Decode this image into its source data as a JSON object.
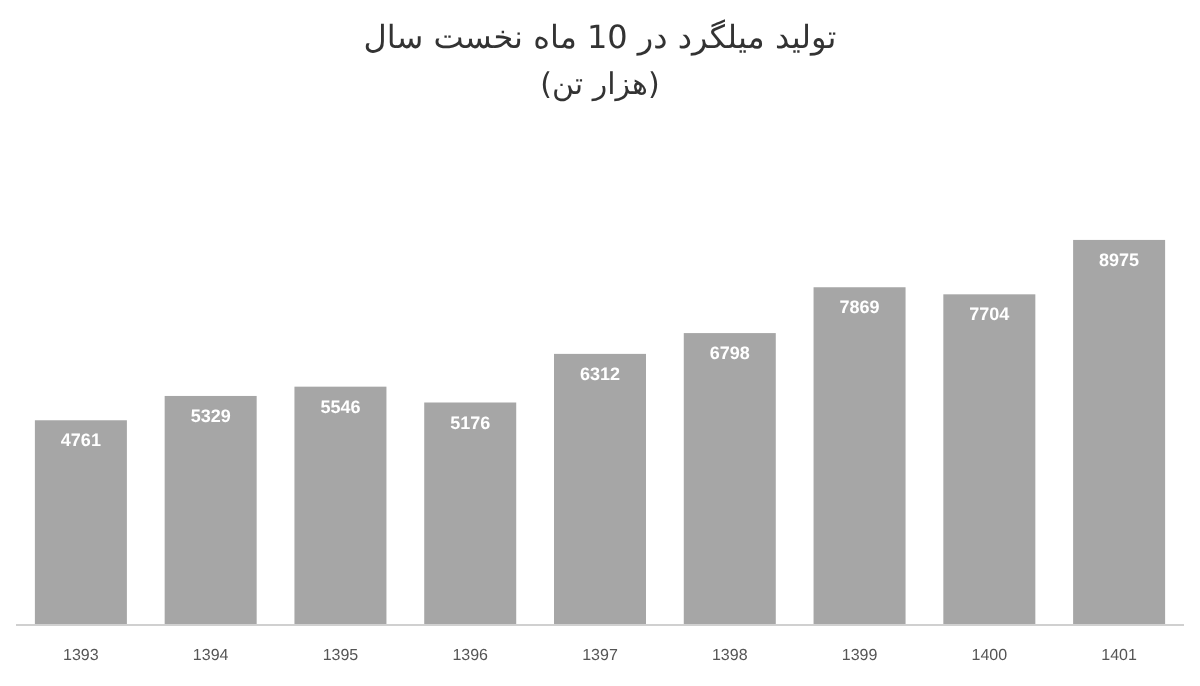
{
  "chart_data": {
    "type": "bar",
    "title": "تولید میلگرد در 10 ماه نخست سال",
    "subtitle": "(هزار تن)",
    "categories": [
      "1393",
      "1394",
      "1395",
      "1396",
      "1397",
      "1398",
      "1399",
      "1400",
      "1401"
    ],
    "values": [
      4761,
      5329,
      5546,
      5176,
      6312,
      6798,
      7869,
      7704,
      8975
    ],
    "color": "#a6a6a6",
    "data_labels": true
  }
}
